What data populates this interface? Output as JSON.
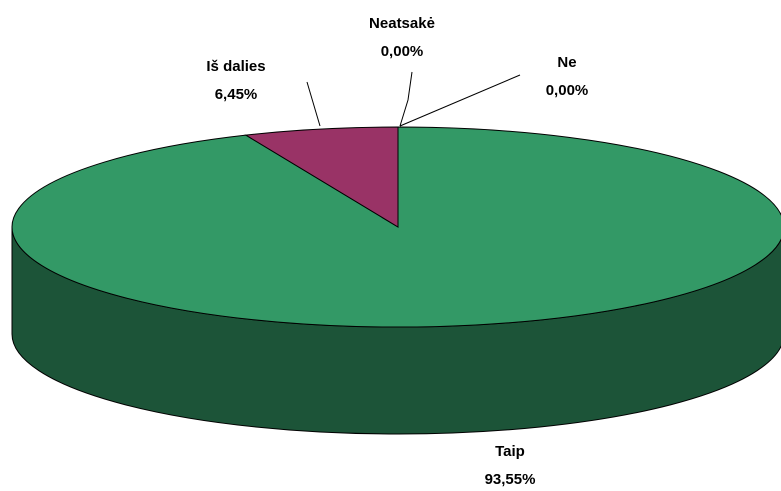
{
  "chart_data": {
    "type": "pie",
    "categories": [
      "Taip",
      "Iš dalies",
      "Neatsakė",
      "Ne"
    ],
    "values": [
      93.55,
      6.45,
      0,
      0
    ],
    "value_labels": [
      "93,55%",
      "6,45%",
      "0,00%",
      "0,00%"
    ],
    "colors": [
      "#339966",
      "#993366",
      "#3366cc",
      "#ffcc00"
    ]
  }
}
